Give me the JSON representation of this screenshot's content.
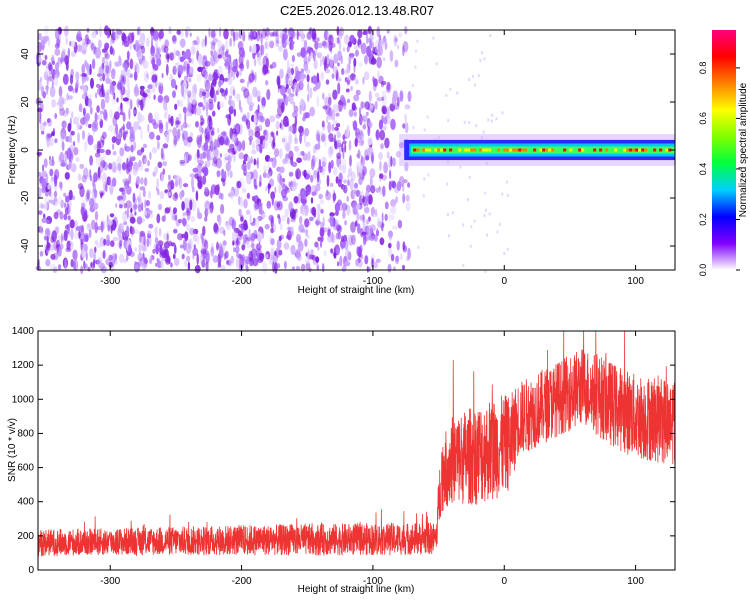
{
  "title": "C2E5.2026.012.13.48.R07",
  "chart_data": [
    {
      "type": "heatmap",
      "title": "C2E5.2026.012.13.48.R07",
      "xlabel": "Height of straight line (km)",
      "ylabel": "Frequency (Hz)",
      "xlim": [
        -355,
        130
      ],
      "ylim": [
        -50,
        50
      ],
      "xticks": [
        -300,
        -200,
        -100,
        0,
        100
      ],
      "yticks": [
        -40,
        -20,
        0,
        20,
        40
      ],
      "xtick_labels": [
        "-300",
        "-200",
        "-100",
        "0",
        "100"
      ],
      "ytick_labels": [
        "-40",
        "-20",
        "0",
        "20",
        "40"
      ],
      "colorbar": {
        "label": "Normalized spectral amplitude",
        "range": [
          0,
          0.95
        ],
        "ticks": [
          0,
          0.2,
          0.4,
          0.6,
          0.8
        ],
        "tick_labels": [
          "0.0",
          "0.2",
          "0.4",
          "0.6",
          "0.8"
        ],
        "colors": [
          "#ffffff",
          "#8000ff",
          "#0000ff",
          "#00d0ff",
          "#00ff40",
          "#80ff00",
          "#ffff00",
          "#ff8000",
          "#ff0000",
          "#ff0080"
        ]
      },
      "regions": [
        {
          "x_range": [
            -355,
            -72
          ],
          "freq_range": [
            -50,
            50
          ],
          "amplitude": [
            0.0,
            0.15
          ],
          "pattern": "noise"
        },
        {
          "x_range": [
            -80,
            130
          ],
          "freq_center": 0,
          "freq_halfwidth": 3,
          "amplitude": [
            0.2,
            0.9
          ],
          "pattern": "carrier"
        }
      ]
    },
    {
      "type": "line",
      "xlabel": "Height of straight line (km)",
      "ylabel": "SNR (10 * v/v)",
      "xlim": [
        -355,
        130
      ],
      "ylim": [
        0,
        1400
      ],
      "xticks": [
        -300,
        -200,
        -100,
        0,
        100
      ],
      "yticks": [
        0,
        200,
        400,
        600,
        800,
        1000,
        1200,
        1400
      ],
      "xtick_labels": [
        "-300",
        "-200",
        "-100",
        "0",
        "100"
      ],
      "ytick_labels": [
        "0",
        "200",
        "400",
        "600",
        "800",
        "1000",
        "1200",
        "1400"
      ],
      "color": "#ee3333",
      "envelope": {
        "x": [
          -355,
          -300,
          -200,
          -100,
          -52,
          -48,
          -40,
          -20,
          -5,
          5,
          10,
          20,
          40,
          60,
          80,
          100,
          120,
          130
        ],
        "mean": [
          160,
          165,
          175,
          180,
          185,
          560,
          640,
          680,
          720,
          750,
          880,
          920,
          1000,
          1080,
          980,
          900,
          880,
          880
        ],
        "spread": [
          80,
          80,
          90,
          95,
          95,
          220,
          260,
          300,
          300,
          280,
          220,
          220,
          220,
          230,
          250,
          250,
          260,
          260
        ]
      }
    }
  ]
}
